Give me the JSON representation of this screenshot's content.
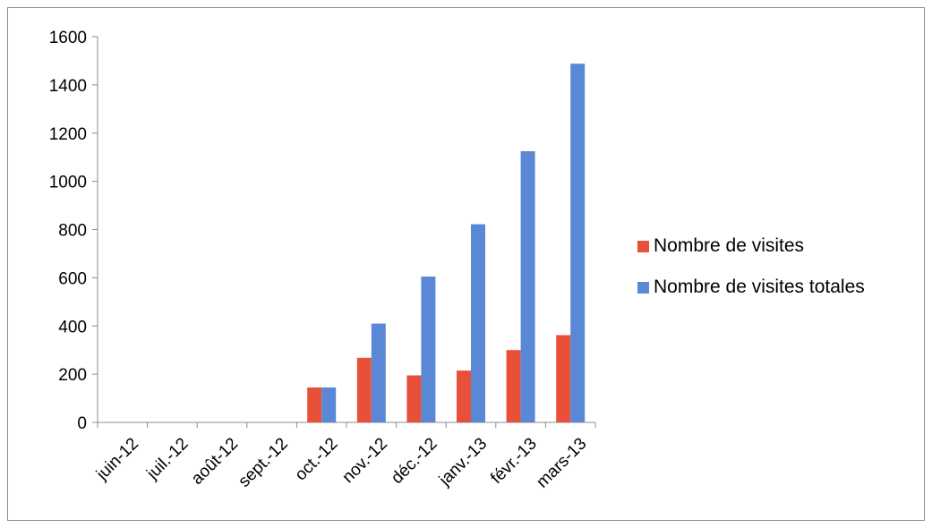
{
  "chart_data": {
    "type": "bar",
    "categories": [
      "juin-12",
      "juil.-12",
      "août-12",
      "sept.-12",
      "oct.-12",
      "nov.-12",
      "déc.-12",
      "janv.-13",
      "févr.-13",
      "mars-13"
    ],
    "series": [
      {
        "name": "Nombre de visites",
        "color": "#e8503a",
        "values": [
          0,
          0,
          0,
          0,
          145,
          268,
          195,
          215,
          300,
          362
        ]
      },
      {
        "name": "Nombre de visites totales",
        "color": "#5b88d6",
        "values": [
          0,
          0,
          0,
          0,
          145,
          410,
          605,
          822,
          1125,
          1488
        ]
      }
    ],
    "y_ticks": [
      0,
      200,
      400,
      600,
      800,
      1000,
      1200,
      1400,
      1600
    ],
    "ylim": [
      0,
      1600
    ],
    "grid": false,
    "legend_position": "right"
  }
}
